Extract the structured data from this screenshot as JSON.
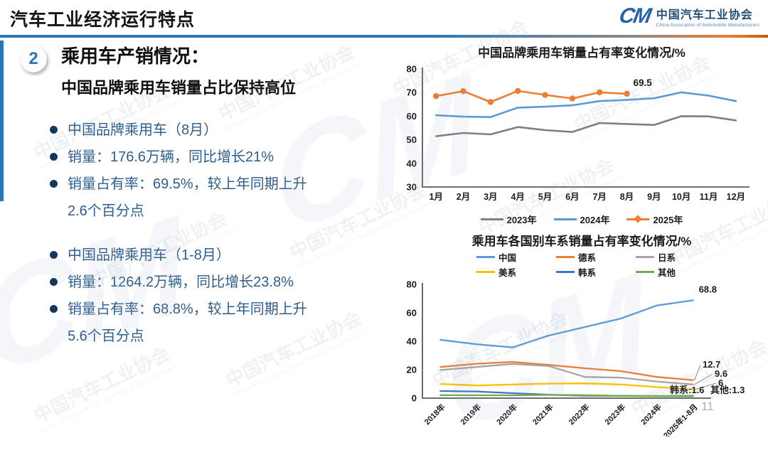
{
  "header": {
    "title": "汽车工业经济运行特点",
    "logo": {
      "mark": "CM",
      "org_cn": "中国汽车工业协会",
      "org_en": "China Association of Automobile Manufacturers"
    }
  },
  "section": {
    "number": "2",
    "heading": "乘用车产销情况：",
    "subheading": "中国品牌乘用车销量占比保持高位"
  },
  "bullets": [
    {
      "text": "中国品牌乘用车（8月）",
      "group_start": false
    },
    {
      "text": "销量：176.6万辆，同比增长21%",
      "group_start": false
    },
    {
      "text": "销量占有率：69.5%，较上年同期上升2.6个百分点",
      "group_start": false
    },
    {
      "text": "中国品牌乘用车（1-8月）",
      "group_start": true
    },
    {
      "text": "销量：1264.2万辆，同比增长23.8%",
      "group_start": false
    },
    {
      "text": "销量占有率：68.8%，较上年同期上升5.6个百分点",
      "group_start": false
    }
  ],
  "page_number": "11",
  "watermark": {
    "text": "中国汽车工业协会",
    "subtext": "China Association of Automobile Manufacturers",
    "mark": "CM"
  },
  "colors": {
    "accent_blue": "#2e75b6",
    "accent_orange": "#ed7d31",
    "bullet_navy": "#17365d",
    "body_blue": "#2e5e8e"
  },
  "chart_data": [
    {
      "type": "line",
      "title": "中国品牌乘用车销量占有率变化情况/%",
      "categories": [
        "1月",
        "2月",
        "3月",
        "4月",
        "5月",
        "6月",
        "7月",
        "8月",
        "9月",
        "10月",
        "11月",
        "12月"
      ],
      "ylim": [
        30,
        80
      ],
      "yticks": [
        30,
        40,
        50,
        60,
        70,
        80
      ],
      "grid": false,
      "legend_position": "bottom",
      "series": [
        {
          "name": "2023年",
          "color": "#7f7f7f",
          "markers": false,
          "values": [
            51.5,
            52.9,
            52.3,
            55.4,
            54.1,
            53.3,
            57.1,
            56.7,
            56.3,
            60.0,
            59.9,
            58.2
          ]
        },
        {
          "name": "2024年",
          "color": "#5b9bd5",
          "markers": false,
          "values": [
            60.4,
            59.8,
            59.6,
            63.6,
            64.0,
            64.6,
            66.4,
            66.9,
            67.6,
            70.1,
            68.7,
            66.4
          ]
        },
        {
          "name": "2025年",
          "color": "#ed7d31",
          "markers": true,
          "end_label": "69.5",
          "values": [
            68.5,
            70.6,
            66.0,
            70.7,
            69.0,
            67.5,
            70.1,
            69.5
          ]
        }
      ]
    },
    {
      "type": "line",
      "title": "乘用车各国别车系销量占有率变化情况/%",
      "categories": [
        "2018年",
        "2019年",
        "2020年",
        "2021年",
        "2022年",
        "2023年",
        "2024年",
        "2025年1-8月"
      ],
      "ylim": [
        0,
        80
      ],
      "yticks": [
        0,
        20,
        40,
        60,
        80
      ],
      "grid": false,
      "legend_position": "top",
      "series": [
        {
          "name": "中国",
          "color": "#5b9bd5",
          "end_label": "68.8",
          "values": [
            41.0,
            37.9,
            35.7,
            44.0,
            50.0,
            56.0,
            65.2,
            68.8
          ]
        },
        {
          "name": "德系",
          "color": "#ed7d31",
          "end_label": "12.7",
          "values": [
            21.9,
            24.2,
            25.5,
            23.4,
            21.0,
            19.0,
            14.9,
            12.7
          ]
        },
        {
          "name": "日系",
          "color": "#a5a5a5",
          "end_label": "9.6",
          "values": [
            19.8,
            21.9,
            24.1,
            22.6,
            14.9,
            14.4,
            11.7,
            9.6
          ]
        },
        {
          "name": "美系",
          "color": "#ffc000",
          "end_label": "6",
          "values": [
            10.0,
            8.9,
            9.6,
            10.2,
            10.4,
            9.6,
            7.8,
            6.0
          ]
        },
        {
          "name": "韩系",
          "color": "#4472c4",
          "end_label": "韩系:1.6",
          "values": [
            5.0,
            4.7,
            3.5,
            2.4,
            1.7,
            1.6,
            1.5,
            1.6
          ]
        },
        {
          "name": "其他",
          "color": "#70ad47",
          "end_label": "其他:1.3",
          "values": [
            2.1,
            2.0,
            2.0,
            2.3,
            2.1,
            1.6,
            1.4,
            1.3
          ]
        }
      ]
    }
  ]
}
